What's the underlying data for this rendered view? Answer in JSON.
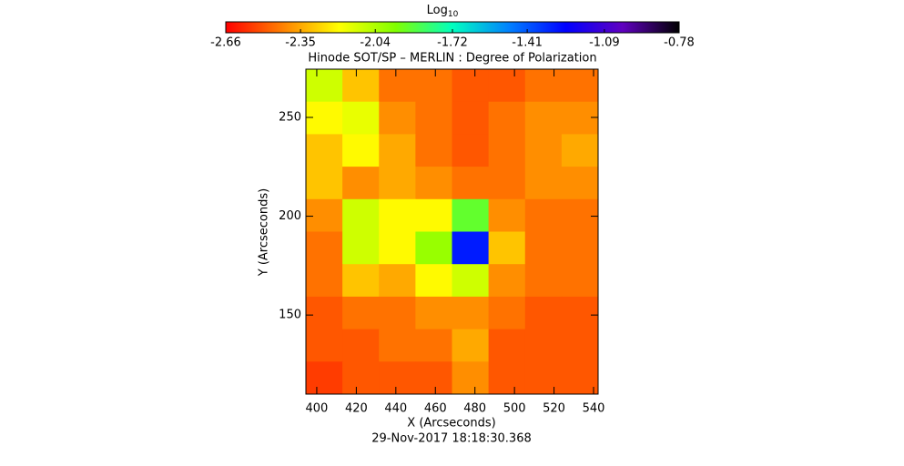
{
  "chart_data": {
    "type": "heatmap",
    "title": "Hinode SOT/SP – MERLIN : Degree of Polarization",
    "subtitle": "29-Nov-2017 18:18:30.368",
    "x_label": "X (Arcseconds)",
    "y_label": "Y (Arcseconds)",
    "colorbar_label": "Log",
    "colorbar_label_sub": "10",
    "clim": [
      -2.66,
      -0.78
    ],
    "cticks": [
      -2.66,
      -2.35,
      -2.04,
      -1.72,
      -1.41,
      -1.09,
      -0.78
    ],
    "colormap": [
      "#ff0000",
      "#ff8000",
      "#ffff00",
      "#80ff00",
      "#00ffc0",
      "#0080ff",
      "#0000ff",
      "#6000c0",
      "#000000"
    ],
    "xlim": [
      394.5,
      542.3
    ],
    "ylim": [
      110,
      274.4
    ],
    "xticks": [
      400,
      420,
      440,
      460,
      480,
      500,
      520,
      540
    ],
    "yticks": [
      150,
      200,
      250
    ],
    "z": [
      [
        -2.1,
        -2.3,
        -2.45,
        -2.45,
        -2.5,
        -2.5,
        -2.45,
        -2.45
      ],
      [
        -2.2,
        -2.15,
        -2.4,
        -2.45,
        -2.5,
        -2.45,
        -2.4,
        -2.4
      ],
      [
        -2.3,
        -2.2,
        -2.35,
        -2.45,
        -2.5,
        -2.45,
        -2.4,
        -2.35
      ],
      [
        -2.3,
        -2.4,
        -2.35,
        -2.4,
        -2.45,
        -2.45,
        -2.4,
        -2.4
      ],
      [
        -2.4,
        -2.1,
        -2.2,
        -2.2,
        -1.9,
        -2.4,
        -2.45,
        -2.45
      ],
      [
        -2.45,
        -2.1,
        -2.2,
        -2.0,
        -1.3,
        -2.3,
        -2.45,
        -2.45
      ],
      [
        -2.45,
        -2.3,
        -2.35,
        -2.2,
        -2.1,
        -2.4,
        -2.45,
        -2.45
      ],
      [
        -2.5,
        -2.45,
        -2.45,
        -2.4,
        -2.4,
        -2.45,
        -2.5,
        -2.5
      ],
      [
        -2.5,
        -2.5,
        -2.45,
        -2.45,
        -2.35,
        -2.5,
        -2.5,
        -2.5
      ],
      [
        -2.55,
        -2.5,
        -2.5,
        -2.5,
        -2.4,
        -2.5,
        -2.5,
        -2.5
      ]
    ]
  }
}
